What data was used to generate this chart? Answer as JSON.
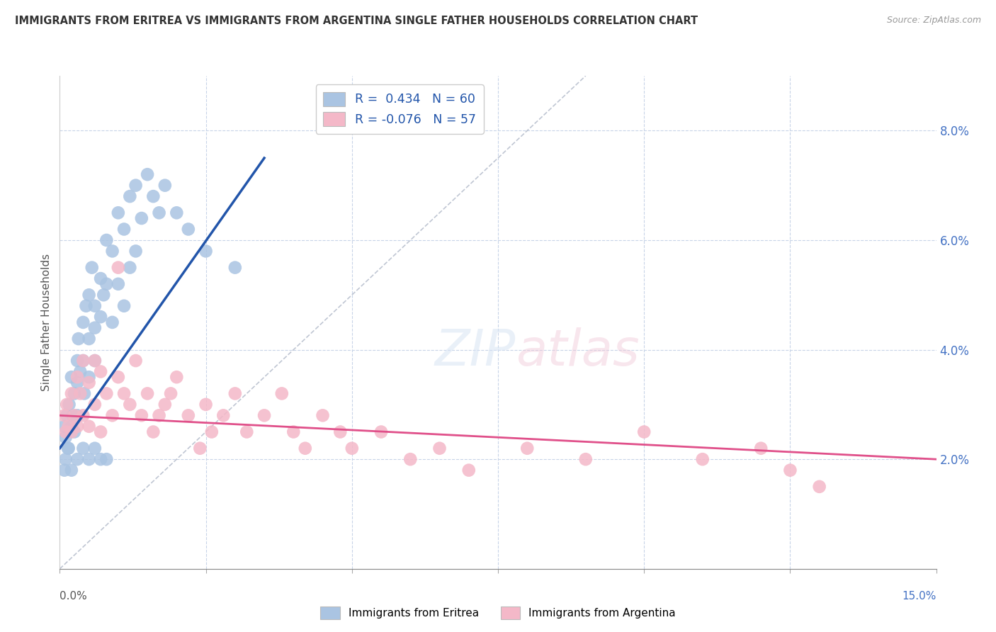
{
  "title": "IMMIGRANTS FROM ERITREA VS IMMIGRANTS FROM ARGENTINA SINGLE FATHER HOUSEHOLDS CORRELATION CHART",
  "source": "Source: ZipAtlas.com",
  "legend_eritrea": "Immigrants from Eritrea",
  "legend_argentina": "Immigrants from Argentina",
  "R_eritrea": 0.434,
  "N_eritrea": 60,
  "R_argentina": -0.076,
  "N_argentina": 57,
  "eritrea_color": "#aac4e2",
  "eritrea_line_color": "#2255aa",
  "argentina_color": "#f4b8c8",
  "argentina_line_color": "#e0508a",
  "diagonal_color": "#b0b8c8",
  "background_color": "#ffffff",
  "grid_color": "#c8d4e8",
  "xmin": 0.0,
  "xmax": 0.15,
  "ymin": 0.0,
  "ymax": 0.09,
  "eritrea_x": [
    0.0008,
    0.001,
    0.0012,
    0.0014,
    0.0016,
    0.002,
    0.002,
    0.0022,
    0.0025,
    0.0025,
    0.003,
    0.003,
    0.003,
    0.0032,
    0.0035,
    0.004,
    0.004,
    0.0042,
    0.0045,
    0.005,
    0.005,
    0.005,
    0.0055,
    0.006,
    0.006,
    0.006,
    0.007,
    0.007,
    0.0075,
    0.008,
    0.008,
    0.009,
    0.009,
    0.01,
    0.01,
    0.011,
    0.011,
    0.012,
    0.012,
    0.013,
    0.013,
    0.014,
    0.015,
    0.016,
    0.017,
    0.018,
    0.02,
    0.022,
    0.025,
    0.03,
    0.0008,
    0.001,
    0.0015,
    0.002,
    0.003,
    0.004,
    0.005,
    0.006,
    0.007,
    0.008
  ],
  "eritrea_y": [
    0.026,
    0.024,
    0.028,
    0.022,
    0.03,
    0.026,
    0.035,
    0.028,
    0.032,
    0.025,
    0.038,
    0.034,
    0.028,
    0.042,
    0.036,
    0.045,
    0.038,
    0.032,
    0.048,
    0.05,
    0.042,
    0.035,
    0.055,
    0.048,
    0.044,
    0.038,
    0.053,
    0.046,
    0.05,
    0.06,
    0.052,
    0.058,
    0.045,
    0.065,
    0.052,
    0.062,
    0.048,
    0.068,
    0.055,
    0.07,
    0.058,
    0.064,
    0.072,
    0.068,
    0.065,
    0.07,
    0.065,
    0.062,
    0.058,
    0.055,
    0.018,
    0.02,
    0.022,
    0.018,
    0.02,
    0.022,
    0.02,
    0.022,
    0.02,
    0.02
  ],
  "argentina_x": [
    0.0008,
    0.001,
    0.0012,
    0.0015,
    0.002,
    0.002,
    0.0025,
    0.003,
    0.003,
    0.0035,
    0.004,
    0.004,
    0.005,
    0.005,
    0.006,
    0.006,
    0.007,
    0.007,
    0.008,
    0.009,
    0.01,
    0.01,
    0.011,
    0.012,
    0.013,
    0.014,
    0.015,
    0.016,
    0.017,
    0.018,
    0.019,
    0.02,
    0.022,
    0.024,
    0.025,
    0.026,
    0.028,
    0.03,
    0.032,
    0.035,
    0.038,
    0.04,
    0.042,
    0.045,
    0.048,
    0.05,
    0.055,
    0.06,
    0.065,
    0.07,
    0.08,
    0.09,
    0.1,
    0.11,
    0.12,
    0.125,
    0.13
  ],
  "argentina_y": [
    0.028,
    0.025,
    0.03,
    0.026,
    0.032,
    0.025,
    0.028,
    0.035,
    0.026,
    0.032,
    0.038,
    0.028,
    0.034,
    0.026,
    0.038,
    0.03,
    0.036,
    0.025,
    0.032,
    0.028,
    0.055,
    0.035,
    0.032,
    0.03,
    0.038,
    0.028,
    0.032,
    0.025,
    0.028,
    0.03,
    0.032,
    0.035,
    0.028,
    0.022,
    0.03,
    0.025,
    0.028,
    0.032,
    0.025,
    0.028,
    0.032,
    0.025,
    0.022,
    0.028,
    0.025,
    0.022,
    0.025,
    0.02,
    0.022,
    0.018,
    0.022,
    0.02,
    0.025,
    0.02,
    0.022,
    0.018,
    0.015
  ],
  "eritrea_trend_x": [
    0.0,
    0.035
  ],
  "eritrea_trend_y": [
    0.022,
    0.075
  ],
  "argentina_trend_x": [
    0.0,
    0.15
  ],
  "argentina_trend_y": [
    0.028,
    0.02
  ]
}
